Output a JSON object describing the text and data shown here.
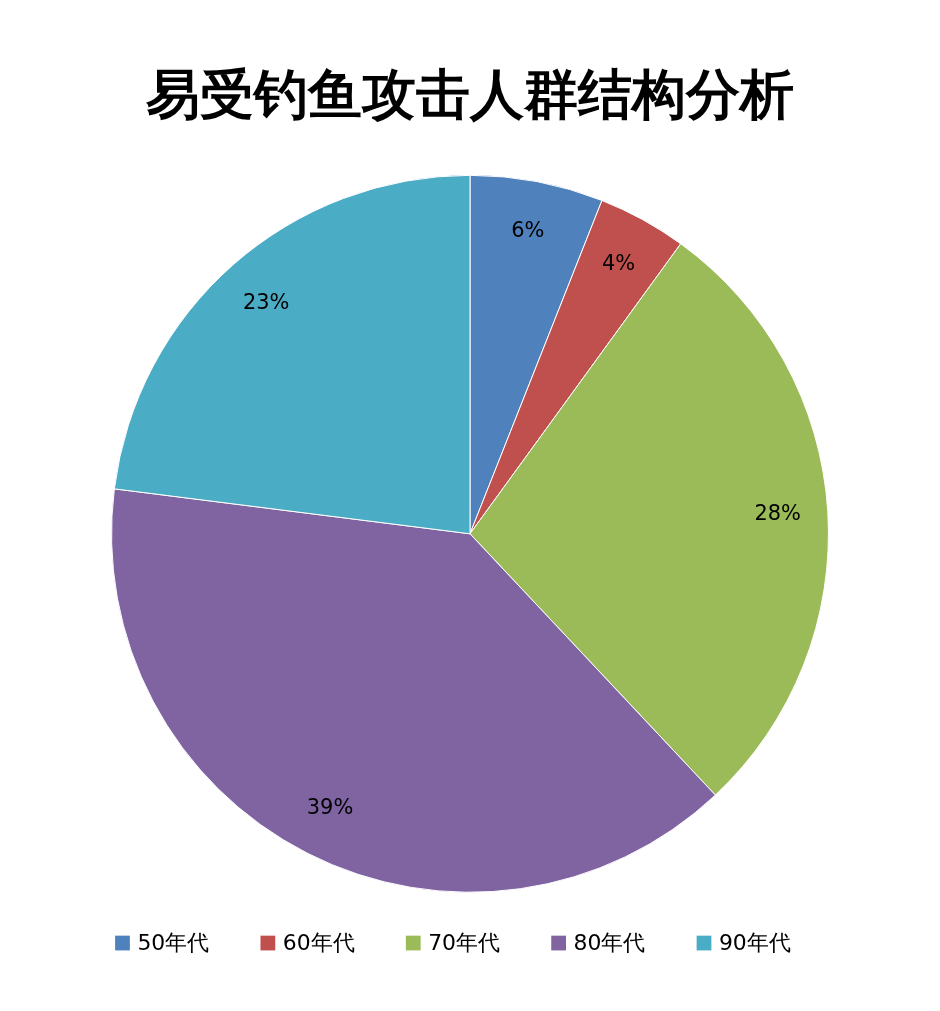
{
  "chart_data": {
    "type": "pie",
    "title": "易受钓鱼攻击人群结构分析",
    "categories": [
      "50年代",
      "60年代",
      "70年代",
      "80年代",
      "90年代"
    ],
    "values": [
      6,
      4,
      28,
      39,
      23
    ],
    "colors": [
      "#4f81bd",
      "#c0504d",
      "#9bbb59",
      "#8064a2",
      "#4bacc6"
    ],
    "value_labels": [
      "6%",
      "4%",
      "28%",
      "39%",
      "23%"
    ],
    "legend": "bottom"
  }
}
